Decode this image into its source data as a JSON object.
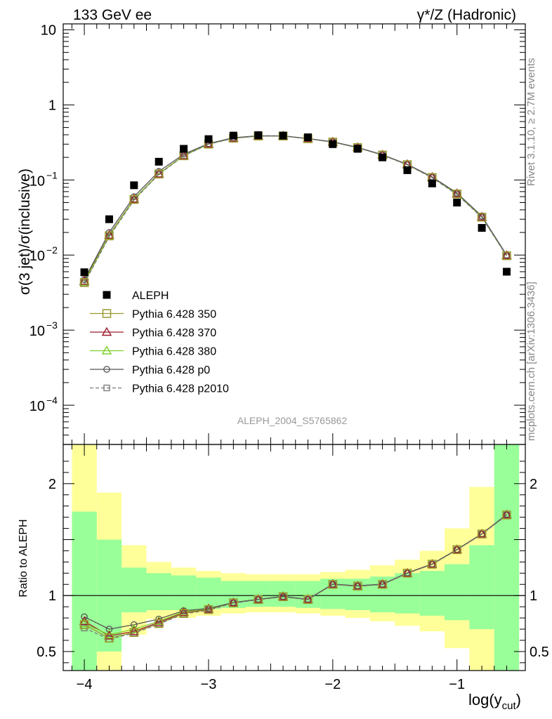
{
  "header": {
    "left": "133 GeV ee",
    "right": "γ*/Z (Hadronic)",
    "side_top": "Rivet 3.1.10, ≥ 2.7M events",
    "side_bottom": "mcplots.cern.ch [arXiv:1306.3436]",
    "analysis": "ALEPH_2004_S5765862"
  },
  "chart_data": [
    {
      "type": "scatter",
      "scale": "log",
      "ylabel": "σ(3 jet)/σ(inclusive)",
      "ylim": [
        3e-05,
        12
      ],
      "xlim": [
        -4.17,
        -0.45
      ],
      "x_ticks": [
        "−4",
        "−3",
        "−2",
        "−1"
      ],
      "y_ticks": [
        {
          "value": 10,
          "label": "10"
        },
        {
          "value": 1,
          "label": "1"
        },
        {
          "value": 0.1,
          "base": "10",
          "exp": "−1"
        },
        {
          "value": 0.01,
          "base": "10",
          "exp": "−2"
        },
        {
          "value": 0.001,
          "base": "10",
          "exp": "−3"
        },
        {
          "value": 0.0001,
          "base": "10",
          "exp": "−4"
        }
      ],
      "x": [
        -4.0,
        -3.8,
        -3.6,
        -3.4,
        -3.2,
        -3.0,
        -2.8,
        -2.6,
        -2.4,
        -2.2,
        -2.0,
        -1.8,
        -1.6,
        -1.4,
        -1.2,
        -1.0,
        -0.8,
        -0.6
      ],
      "legend": [
        {
          "label": "ALEPH",
          "color": "#000000",
          "marker": "filled-square",
          "line": "none"
        },
        {
          "label": "Pythia 6.428 350",
          "color": "#9a9a2e",
          "marker": "open-square",
          "line": "solid"
        },
        {
          "label": "Pythia 6.428 370",
          "color": "#9b1c2c",
          "marker": "open-triangle",
          "line": "solid"
        },
        {
          "label": "Pythia 6.428 380",
          "color": "#7dd02a",
          "marker": "open-triangle",
          "line": "solid"
        },
        {
          "label": "Pythia 6.428 p0",
          "color": "#555555",
          "marker": "open-circle",
          "line": "solid"
        },
        {
          "label": "Pythia 6.428 p2010",
          "color": "#777777",
          "marker": "open-square-small",
          "line": "dashed"
        }
      ],
      "series": [
        {
          "name": "ALEPH",
          "values": [
            0.0059,
            0.03,
            0.085,
            0.175,
            0.26,
            0.35,
            0.39,
            0.395,
            0.39,
            0.37,
            0.3,
            0.26,
            0.2,
            0.135,
            0.09,
            0.05,
            0.023,
            0.006
          ]
        },
        {
          "name": "Pythia 6.428 350",
          "values": [
            0.0043,
            0.018,
            0.055,
            0.12,
            0.21,
            0.3,
            0.36,
            0.385,
            0.385,
            0.355,
            0.32,
            0.27,
            0.215,
            0.16,
            0.108,
            0.065,
            0.032,
            0.0098
          ]
        },
        {
          "name": "Pythia 6.428 370",
          "values": [
            0.0045,
            0.0185,
            0.056,
            0.121,
            0.212,
            0.302,
            0.362,
            0.386,
            0.386,
            0.356,
            0.321,
            0.271,
            0.216,
            0.161,
            0.109,
            0.066,
            0.0322,
            0.0099
          ]
        },
        {
          "name": "Pythia 6.428 380",
          "values": [
            0.0044,
            0.0182,
            0.0555,
            0.1205,
            0.211,
            0.301,
            0.361,
            0.3855,
            0.3855,
            0.3555,
            0.3205,
            0.2705,
            0.2155,
            0.1605,
            0.1085,
            0.0655,
            0.0321,
            0.0098
          ]
        },
        {
          "name": "Pythia 6.428 p0",
          "values": [
            0.0047,
            0.02,
            0.06,
            0.13,
            0.22,
            0.305,
            0.365,
            0.388,
            0.387,
            0.357,
            0.322,
            0.272,
            0.217,
            0.162,
            0.11,
            0.067,
            0.033,
            0.01
          ]
        },
        {
          "name": "Pythia 6.428 p2010",
          "values": [
            0.0042,
            0.0175,
            0.054,
            0.119,
            0.209,
            0.299,
            0.359,
            0.384,
            0.384,
            0.354,
            0.319,
            0.269,
            0.214,
            0.159,
            0.107,
            0.064,
            0.0318,
            0.0097
          ]
        }
      ]
    },
    {
      "type": "line",
      "ylabel": "Ratio to ALEPH",
      "xlabel": "log(y",
      "xlabel_sub": "cut",
      "xlabel_close": ")",
      "ylim": [
        0.33,
        2.35
      ],
      "xlim": [
        -4.17,
        -0.45
      ],
      "x_ticks": [
        "−4",
        "−3",
        "−2",
        "−1"
      ],
      "y_ticks": [
        {
          "value": 2,
          "label": "2"
        },
        {
          "value": 1,
          "label": "1"
        },
        {
          "value": 0.5,
          "label": "0.5"
        }
      ],
      "band_edges": [
        -4.1,
        -3.9,
        -3.7,
        -3.5,
        -3.3,
        -3.1,
        -2.9,
        -2.7,
        -2.5,
        -2.3,
        -2.1,
        -1.9,
        -1.7,
        -1.5,
        -1.3,
        -1.1,
        -0.9,
        -0.7,
        -0.5
      ],
      "band_green": [
        [
          0.33,
          1.75
        ],
        [
          0.5,
          1.5
        ],
        [
          0.85,
          1.25
        ],
        [
          0.87,
          1.2
        ],
        [
          0.87,
          1.18
        ],
        [
          0.88,
          1.16
        ],
        [
          0.89,
          1.13
        ],
        [
          0.9,
          1.13
        ],
        [
          0.9,
          1.13
        ],
        [
          0.89,
          1.13
        ],
        [
          0.88,
          1.15
        ],
        [
          0.87,
          1.15
        ],
        [
          0.85,
          1.17
        ],
        [
          0.84,
          1.2
        ],
        [
          0.82,
          1.22
        ],
        [
          0.78,
          1.28
        ],
        [
          0.7,
          1.45
        ],
        [
          0.33,
          2.35
        ]
      ],
      "band_yellow": [
        [
          0.33,
          2.35
        ],
        [
          0.33,
          1.92
        ],
        [
          0.65,
          1.45
        ],
        [
          0.79,
          1.3
        ],
        [
          0.8,
          1.25
        ],
        [
          0.82,
          1.22
        ],
        [
          0.84,
          1.2
        ],
        [
          0.85,
          1.19
        ],
        [
          0.85,
          1.19
        ],
        [
          0.84,
          1.19
        ],
        [
          0.82,
          1.21
        ],
        [
          0.8,
          1.23
        ],
        [
          0.77,
          1.27
        ],
        [
          0.73,
          1.32
        ],
        [
          0.68,
          1.4
        ],
        [
          0.53,
          1.6
        ],
        [
          0.33,
          1.97
        ],
        [
          0.33,
          2.35
        ]
      ],
      "series": [
        {
          "name": "Pythia 6.428 350",
          "values": [
            0.74,
            0.62,
            0.67,
            0.75,
            0.84,
            0.875,
            0.935,
            0.965,
            0.99,
            0.965,
            1.1,
            1.085,
            1.1,
            1.2,
            1.28,
            1.41,
            1.55,
            1.72
          ]
        },
        {
          "name": "Pythia 6.428 370",
          "values": [
            0.77,
            0.64,
            0.68,
            0.76,
            0.85,
            0.88,
            0.937,
            0.966,
            0.991,
            0.966,
            1.101,
            1.086,
            1.101,
            1.201,
            1.281,
            1.411,
            1.551,
            1.722
          ]
        },
        {
          "name": "Pythia 6.428 380",
          "values": [
            0.75,
            0.65,
            0.7,
            0.77,
            0.855,
            0.882,
            0.936,
            0.966,
            0.99,
            0.966,
            1.1,
            1.085,
            1.1,
            1.2,
            1.28,
            1.41,
            1.55,
            1.72
          ]
        },
        {
          "name": "Pythia 6.428 p0",
          "values": [
            0.81,
            0.7,
            0.74,
            0.79,
            0.865,
            0.885,
            0.938,
            0.967,
            0.992,
            0.967,
            1.102,
            1.087,
            1.102,
            1.202,
            1.282,
            1.412,
            1.552,
            1.725
          ]
        },
        {
          "name": "Pythia 6.428 p2010",
          "values": [
            0.71,
            0.61,
            0.665,
            0.745,
            0.835,
            0.87,
            0.932,
            0.963,
            0.988,
            0.963,
            1.098,
            1.083,
            1.098,
            1.198,
            1.278,
            1.408,
            1.548,
            1.718
          ]
        }
      ]
    }
  ]
}
